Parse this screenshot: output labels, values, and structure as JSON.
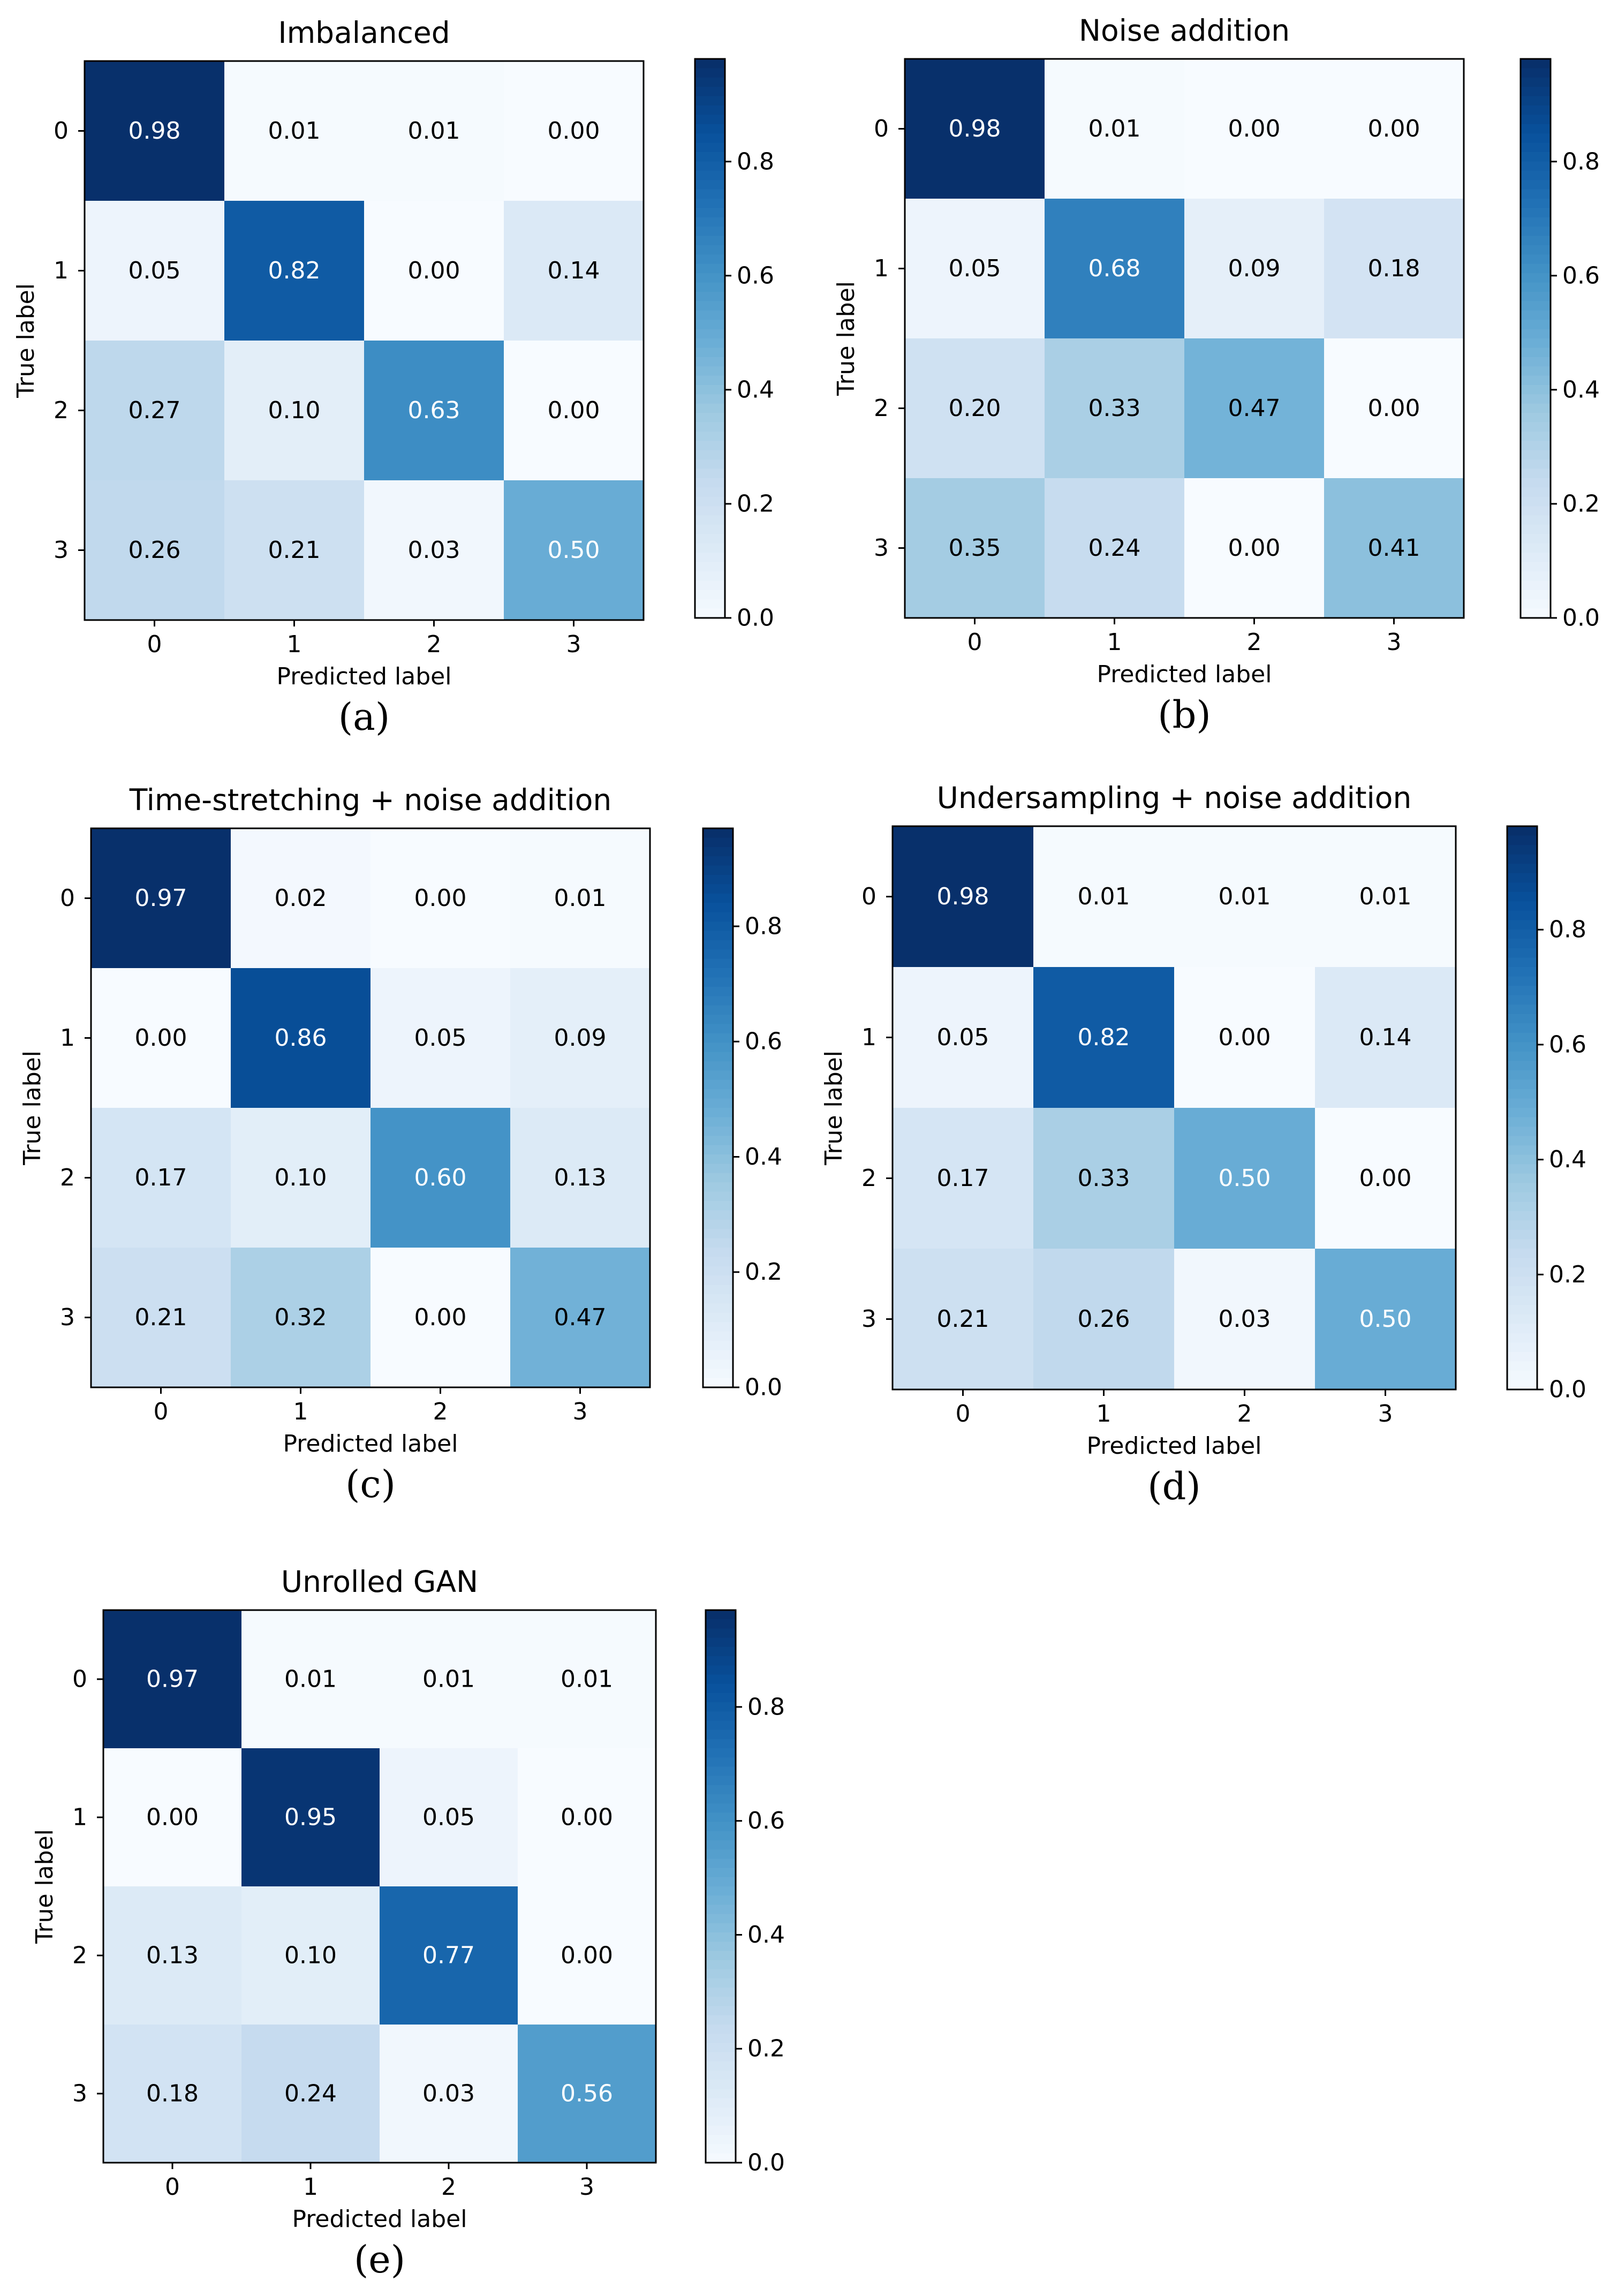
{
  "chart_data": [
    {
      "type": "heatmap",
      "title": "Imbalanced",
      "caption": "(a)",
      "xlabel": "Predicted label",
      "ylabel": "True label",
      "x_categories": [
        "0",
        "1",
        "2",
        "3"
      ],
      "y_categories": [
        "0",
        "1",
        "2",
        "3"
      ],
      "values": [
        [
          0.98,
          0.01,
          0.01,
          0.0
        ],
        [
          0.05,
          0.82,
          0.0,
          0.14
        ],
        [
          0.27,
          0.1,
          0.63,
          0.0
        ],
        [
          0.26,
          0.21,
          0.03,
          0.5
        ]
      ],
      "value_labels": [
        [
          "0.98",
          "0.01",
          "0.01",
          "0.00"
        ],
        [
          "0.05",
          "0.82",
          "0.00",
          "0.14"
        ],
        [
          "0.27",
          "0.10",
          "0.63",
          "0.00"
        ],
        [
          "0.26",
          "0.21",
          "0.03",
          "0.50"
        ]
      ],
      "colorbar": {
        "range": [
          0,
          0.98
        ],
        "ticks": [
          "0.0",
          "0.2",
          "0.4",
          "0.6",
          "0.8"
        ],
        "colormap": "Blues"
      }
    },
    {
      "type": "heatmap",
      "title": "Noise addition",
      "caption": "(b)",
      "xlabel": "Predicted label",
      "ylabel": "True label",
      "x_categories": [
        "0",
        "1",
        "2",
        "3"
      ],
      "y_categories": [
        "0",
        "1",
        "2",
        "3"
      ],
      "values": [
        [
          0.98,
          0.01,
          0.0,
          0.0
        ],
        [
          0.05,
          0.68,
          0.09,
          0.18
        ],
        [
          0.2,
          0.33,
          0.47,
          0.0
        ],
        [
          0.35,
          0.24,
          0.0,
          0.41
        ]
      ],
      "value_labels": [
        [
          "0.98",
          "0.01",
          "0.00",
          "0.00"
        ],
        [
          "0.05",
          "0.68",
          "0.09",
          "0.18"
        ],
        [
          "0.20",
          "0.33",
          "0.47",
          "0.00"
        ],
        [
          "0.35",
          "0.24",
          "0.00",
          "0.41"
        ]
      ],
      "colorbar": {
        "range": [
          0,
          0.98
        ],
        "ticks": [
          "0.0",
          "0.2",
          "0.4",
          "0.6",
          "0.8"
        ],
        "colormap": "Blues"
      }
    },
    {
      "type": "heatmap",
      "title": "Time-stretching + noise addition",
      "caption": "(c)",
      "xlabel": "Predicted label",
      "ylabel": "True label",
      "x_categories": [
        "0",
        "1",
        "2",
        "3"
      ],
      "y_categories": [
        "0",
        "1",
        "2",
        "3"
      ],
      "values": [
        [
          0.97,
          0.02,
          0.0,
          0.01
        ],
        [
          0.0,
          0.86,
          0.05,
          0.09
        ],
        [
          0.17,
          0.1,
          0.6,
          0.13
        ],
        [
          0.21,
          0.32,
          0.0,
          0.47
        ]
      ],
      "value_labels": [
        [
          "0.97",
          "0.02",
          "0.00",
          "0.01"
        ],
        [
          "0.00",
          "0.86",
          "0.05",
          "0.09"
        ],
        [
          "0.17",
          "0.10",
          "0.60",
          "0.13"
        ],
        [
          "0.21",
          "0.32",
          "0.00",
          "0.47"
        ]
      ],
      "colorbar": {
        "range": [
          0,
          0.97
        ],
        "ticks": [
          "0.0",
          "0.2",
          "0.4",
          "0.6",
          "0.8"
        ],
        "colormap": "Blues"
      }
    },
    {
      "type": "heatmap",
      "title": "Undersampling + noise addition",
      "caption": "(d)",
      "xlabel": "Predicted label",
      "ylabel": "True label",
      "x_categories": [
        "0",
        "1",
        "2",
        "3"
      ],
      "y_categories": [
        "0",
        "1",
        "2",
        "3"
      ],
      "values": [
        [
          0.98,
          0.01,
          0.01,
          0.01
        ],
        [
          0.05,
          0.82,
          0.0,
          0.14
        ],
        [
          0.17,
          0.33,
          0.5,
          0.0
        ],
        [
          0.21,
          0.26,
          0.03,
          0.5
        ]
      ],
      "value_labels": [
        [
          "0.98",
          "0.01",
          "0.01",
          "0.01"
        ],
        [
          "0.05",
          "0.82",
          "0.00",
          "0.14"
        ],
        [
          "0.17",
          "0.33",
          "0.50",
          "0.00"
        ],
        [
          "0.21",
          "0.26",
          "0.03",
          "0.50"
        ]
      ],
      "colorbar": {
        "range": [
          0,
          0.98
        ],
        "ticks": [
          "0.0",
          "0.2",
          "0.4",
          "0.6",
          "0.8"
        ],
        "colormap": "Blues"
      }
    },
    {
      "type": "heatmap",
      "title": "Unrolled GAN",
      "caption": "(e)",
      "xlabel": "Predicted label",
      "ylabel": "True label",
      "x_categories": [
        "0",
        "1",
        "2",
        "3"
      ],
      "y_categories": [
        "0",
        "1",
        "2",
        "3"
      ],
      "values": [
        [
          0.97,
          0.01,
          0.01,
          0.01
        ],
        [
          0.0,
          0.95,
          0.05,
          0.0
        ],
        [
          0.13,
          0.1,
          0.77,
          0.0
        ],
        [
          0.18,
          0.24,
          0.03,
          0.56
        ]
      ],
      "value_labels": [
        [
          "0.97",
          "0.01",
          "0.01",
          "0.01"
        ],
        [
          "0.00",
          "0.95",
          "0.05",
          "0.00"
        ],
        [
          "0.13",
          "0.10",
          "0.77",
          "0.00"
        ],
        [
          "0.18",
          "0.24",
          "0.03",
          "0.56"
        ]
      ],
      "colorbar": {
        "range": [
          0,
          0.97
        ],
        "ticks": [
          "0.0",
          "0.2",
          "0.4",
          "0.6",
          "0.8"
        ],
        "colormap": "Blues"
      }
    }
  ]
}
